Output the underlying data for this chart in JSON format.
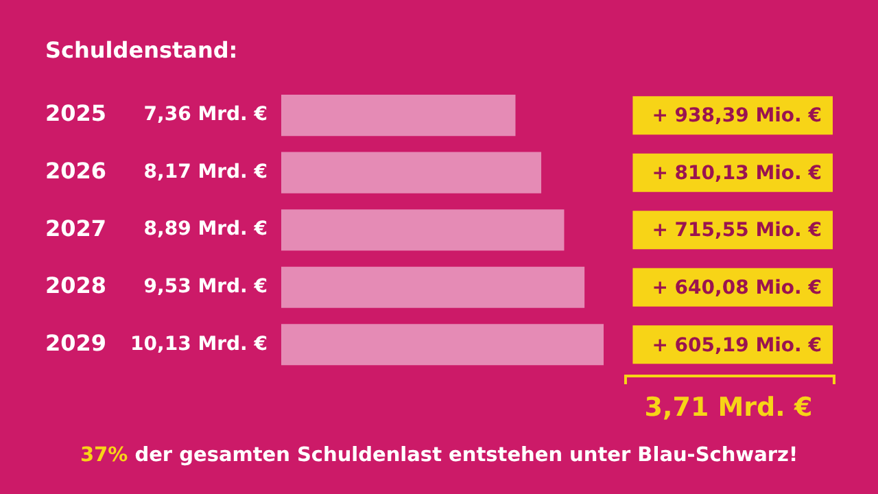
{
  "chart_data": {
    "type": "bar",
    "orientation": "horizontal",
    "title": "Schuldenstand:",
    "categories": [
      "2025",
      "2026",
      "2027",
      "2028",
      "2029"
    ],
    "values": [
      7.36,
      8.17,
      8.89,
      9.53,
      10.13
    ],
    "value_labels": [
      "7,36 Mrd. €",
      "8,17 Mrd. €",
      "8,89 Mrd. €",
      "9,53 Mrd. €",
      "10,13 Mrd. €"
    ],
    "color": "#e58bb5",
    "annotations": [
      "+ 938,39 Mio. €",
      "+ 810,13 Mio. €",
      "+ 715,55 Mio. €",
      "+ 640,08 Mio. €",
      "+ 605,19 Mio. €",
      "3,71 Mrd. €",
      "37% der gesamten Schuldenlast entstehen unter Blau-Schwarz!"
    ]
  }
}
